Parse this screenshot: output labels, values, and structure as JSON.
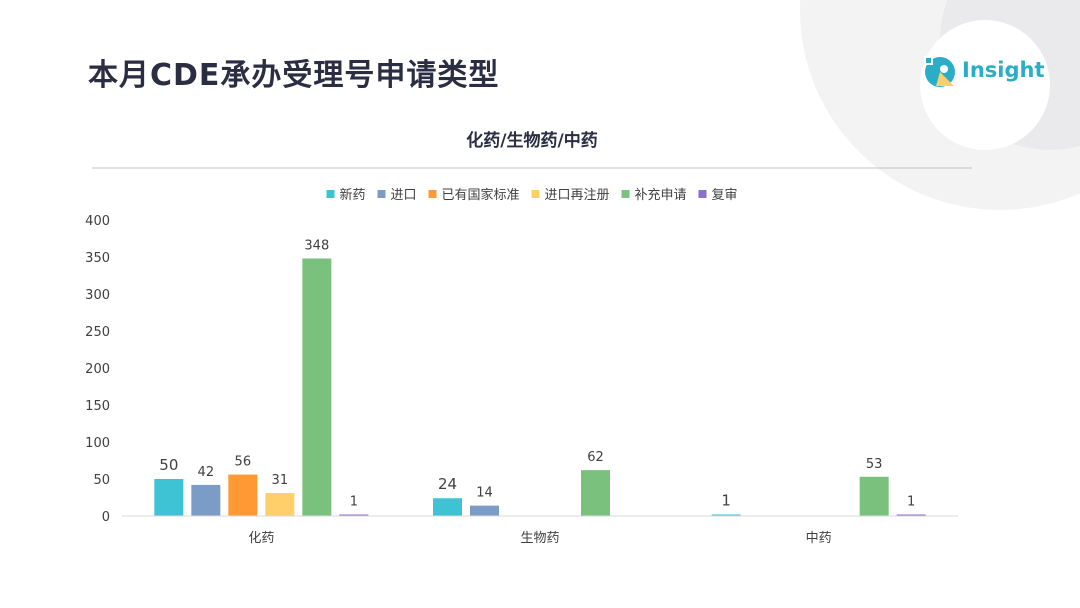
{
  "slide": {
    "title": "本月CDE承办受理号申请类型",
    "logo_text": "Insight"
  },
  "colors": {
    "title": "#2b2d42",
    "axis_text": "#404040",
    "axis_line": "#d9d9d9",
    "logo": "#2aaec8"
  },
  "chart_data": {
    "type": "bar",
    "title": "化药/生物药/中药",
    "legend_position": "top",
    "categories": [
      "化药",
      "生物药",
      "中药"
    ],
    "ylim": [
      0,
      400
    ],
    "yticks": [
      0,
      50,
      100,
      150,
      200,
      250,
      300,
      350,
      400
    ],
    "grid": false,
    "series": [
      {
        "name": "新药",
        "color": "#3ec3d5",
        "values": [
          50,
          24,
          1
        ]
      },
      {
        "name": "进口",
        "color": "#7a9cc6",
        "values": [
          42,
          14,
          null
        ]
      },
      {
        "name": "已有国家标准",
        "color": "#ff9933",
        "values": [
          56,
          null,
          null
        ]
      },
      {
        "name": "进口再注册",
        "color": "#fdd06a",
        "values": [
          31,
          null,
          null
        ]
      },
      {
        "name": "补充申请",
        "color": "#7bc17e",
        "values": [
          348,
          62,
          53
        ]
      },
      {
        "name": "复审",
        "color": "#8a6fcf",
        "values": [
          1,
          null,
          1
        ]
      }
    ]
  }
}
